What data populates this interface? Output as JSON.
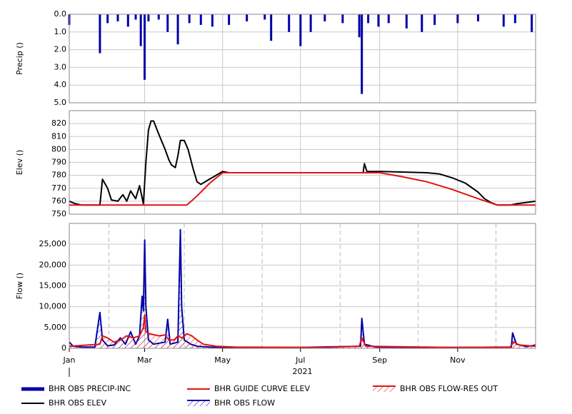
{
  "chart_data": [
    {
      "type": "bar",
      "ylabel": "Precip ()",
      "inverted": true,
      "ylim": [
        0,
        5
      ],
      "yticks": [
        {
          "value": 0,
          "label": "0.0"
        },
        {
          "value": 1,
          "label": "1.0"
        },
        {
          "value": 2,
          "label": "2.0"
        },
        {
          "value": 3,
          "label": "3.0"
        },
        {
          "value": 4,
          "label": "4.0"
        },
        {
          "value": 5,
          "label": "5.0"
        }
      ],
      "grid": true,
      "series": [
        {
          "name": "BHR OBS PRECIP-INC",
          "color": "#0000a8",
          "x": [
            0,
            24,
            30,
            38,
            46,
            52,
            56,
            59,
            62,
            70,
            77,
            85,
            94,
            103,
            112,
            125,
            139,
            153,
            158,
            172,
            181,
            189,
            200,
            214,
            227,
            229,
            234,
            242,
            250,
            264,
            276,
            286,
            304,
            320,
            340,
            349,
            362
          ],
          "values": [
            0.6,
            2.2,
            0.5,
            0.4,
            0.7,
            0.3,
            1.8,
            3.7,
            0.4,
            0.3,
            1.0,
            1.7,
            0.5,
            0.6,
            0.7,
            0.6,
            0.4,
            0.3,
            1.5,
            1.0,
            1.8,
            1.0,
            0.4,
            0.5,
            1.3,
            4.5,
            0.5,
            0.7,
            0.5,
            0.8,
            1.0,
            0.6,
            0.5,
            0.4,
            0.7,
            0.5,
            1.0
          ]
        }
      ]
    },
    {
      "type": "line",
      "ylabel": "Elev ()",
      "ylim": [
        750,
        830
      ],
      "yticks": [
        750,
        760,
        770,
        780,
        790,
        800,
        810,
        820
      ],
      "grid": true,
      "series": [
        {
          "name": "BHR OBS ELEV",
          "color": "#000000",
          "x": [
            0,
            5,
            10,
            20,
            24,
            26,
            30,
            33,
            38,
            42,
            45,
            48,
            52,
            55,
            58,
            60,
            62,
            64,
            66,
            70,
            75,
            78,
            80,
            83,
            85,
            87,
            90,
            93,
            97,
            100,
            103,
            108,
            115,
            120,
            125,
            160,
            230,
            231,
            233,
            245,
            280,
            290,
            300,
            310,
            320,
            325,
            330,
            335,
            345,
            350,
            365
          ],
          "values": [
            760,
            758,
            757,
            757,
            757,
            777,
            770,
            761,
            760,
            765,
            760,
            768,
            762,
            772,
            758,
            790,
            815,
            822,
            822,
            812,
            800,
            792,
            788,
            786,
            795,
            807,
            807,
            800,
            785,
            775,
            773,
            776,
            780,
            783,
            782,
            782,
            782,
            789,
            783,
            783,
            782,
            781,
            778,
            774,
            767,
            762,
            759,
            757,
            757,
            758,
            760
          ]
        },
        {
          "name": "BHR GUIDE CURVE ELEV",
          "color": "#e01414",
          "x": [
            0,
            92,
            100,
            110,
            120,
            243,
            260,
            280,
            300,
            320,
            335,
            365
          ],
          "values": [
            757,
            757,
            764,
            774,
            782,
            782,
            779,
            775,
            769,
            762,
            757,
            757
          ]
        }
      ]
    },
    {
      "type": "area",
      "ylabel": "Flow ()",
      "ylim": [
        0,
        30000
      ],
      "yticks": [
        0,
        {
          "value": 5000,
          "label": "5,000"
        },
        {
          "value": 10000,
          "label": "10,000"
        },
        {
          "value": 15000,
          "label": "15,000"
        },
        {
          "value": 20000,
          "label": "20,000"
        },
        {
          "value": 25000,
          "label": "25,000"
        }
      ],
      "grid": true,
      "xlim": [
        0,
        365
      ],
      "xticks": [
        {
          "value": 0,
          "label": "Jan"
        },
        {
          "value": 59,
          "label": "Mar"
        },
        {
          "value": 120,
          "label": "May"
        },
        {
          "value": 181,
          "label": "Jul"
        },
        {
          "value": 243,
          "label": "Sep"
        },
        {
          "value": 304,
          "label": "Nov"
        }
      ],
      "minor_xticks": [
        31,
        90,
        151,
        212,
        273,
        334
      ],
      "xlabel": "2021",
      "series": [
        {
          "name": "BHR OBS FLOW",
          "color": "#0000a8",
          "x": [
            0,
            3,
            10,
            20,
            24,
            26,
            30,
            35,
            40,
            44,
            48,
            52,
            55,
            57,
            58,
            59,
            60,
            62,
            66,
            75,
            77,
            79,
            85,
            87,
            88,
            90,
            95,
            100,
            110,
            130,
            180,
            228,
            229,
            231,
            240,
            300,
            346,
            347,
            350,
            358,
            365
          ],
          "values": [
            1500,
            500,
            300,
            300,
            8600,
            2000,
            600,
            800,
            2500,
            1000,
            4000,
            1000,
            3000,
            12500,
            9000,
            26000,
            10000,
            2000,
            1000,
            1500,
            7000,
            1000,
            1500,
            28500,
            10000,
            2000,
            1000,
            500,
            300,
            200,
            200,
            500,
            7200,
            1000,
            300,
            200,
            300,
            3700,
            1000,
            400,
            800
          ]
        },
        {
          "name": "BHR OBS FLOW-RES OUT",
          "color": "#e01414",
          "x": [
            0,
            24,
            26,
            30,
            35,
            40,
            45,
            50,
            55,
            58,
            59,
            60,
            63,
            70,
            75,
            78,
            82,
            85,
            88,
            92,
            96,
            100,
            105,
            115,
            130,
            200,
            227,
            229,
            232,
            300,
            345,
            348,
            352,
            365
          ],
          "values": [
            500,
            1000,
            3000,
            2500,
            1500,
            2000,
            3000,
            2500,
            3000,
            5000,
            8000,
            4000,
            3500,
            3000,
            3200,
            2000,
            2000,
            3000,
            2500,
            3500,
            3000,
            2000,
            1000,
            500,
            300,
            200,
            500,
            2500,
            500,
            200,
            300,
            1500,
            800,
            500
          ]
        }
      ]
    }
  ]
}
